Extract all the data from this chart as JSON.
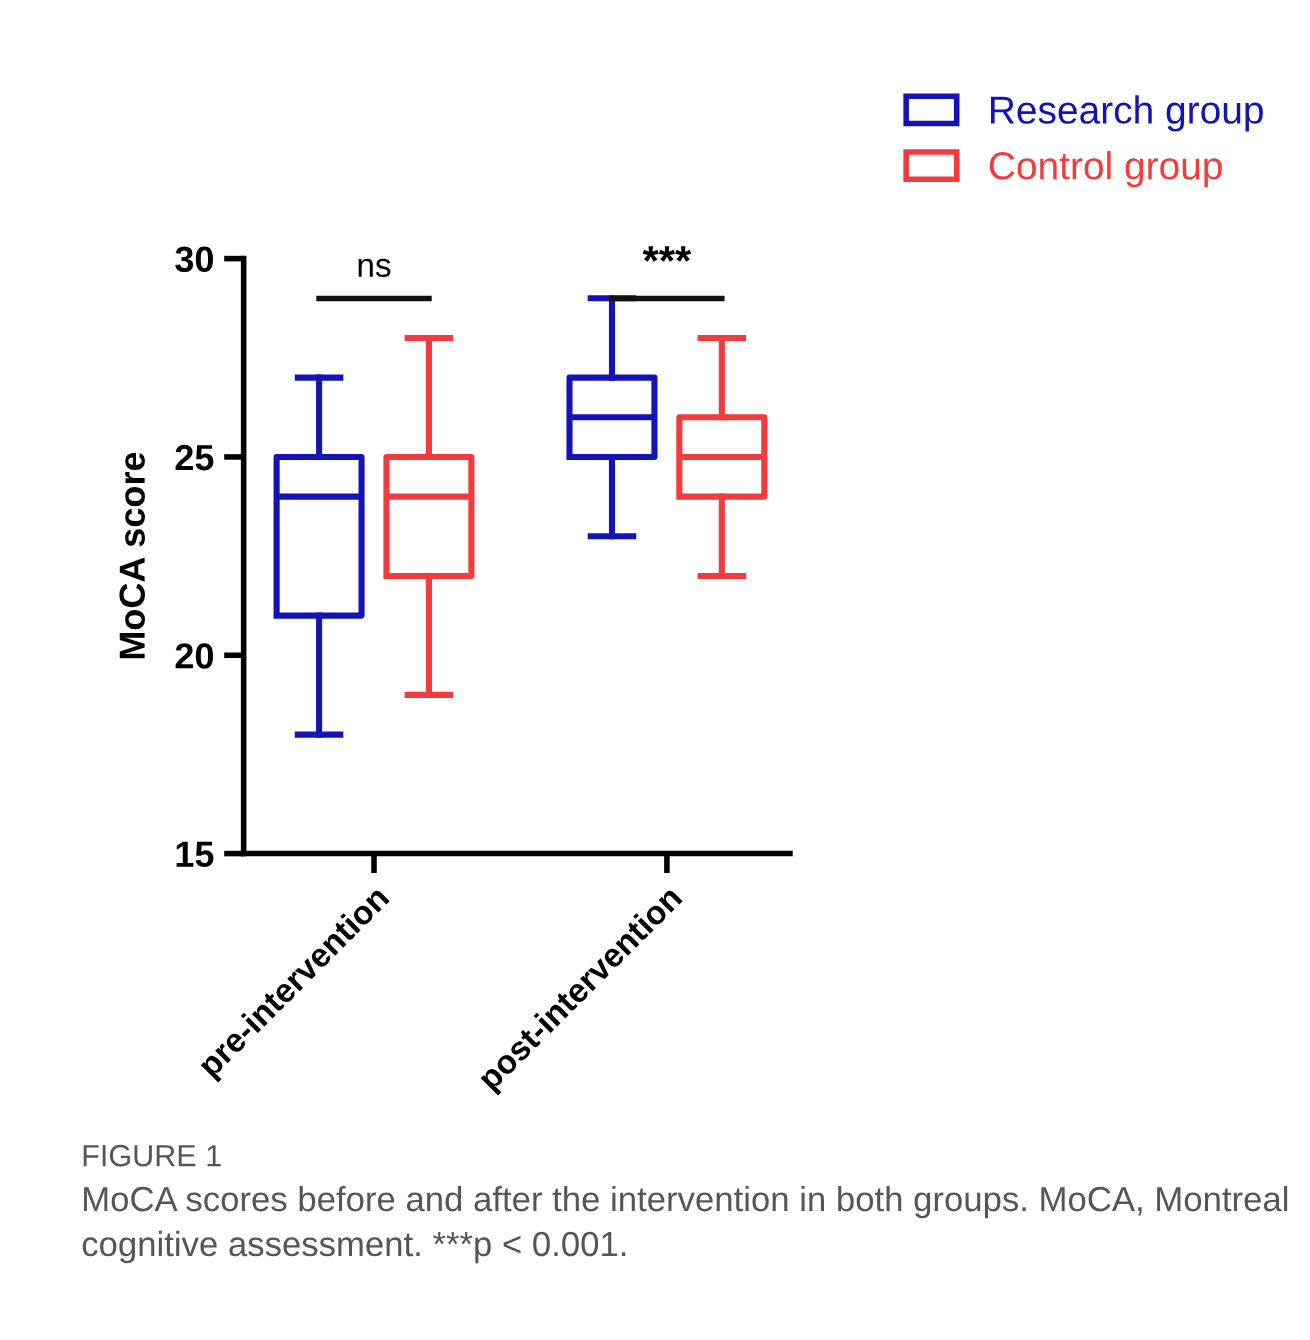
{
  "chart_data": {
    "type": "box",
    "ylabel": "MoCA score",
    "categories": [
      "pre-intervention",
      "post-intervention"
    ],
    "series": [
      {
        "name": "Research group",
        "color": "#1414b4",
        "boxes": [
          {
            "low": 18,
            "q1": 21,
            "median": 24,
            "q3": 25,
            "high": 27
          },
          {
            "low": 23,
            "q1": 25,
            "median": 26,
            "q3": 27,
            "high": 29
          }
        ]
      },
      {
        "name": "Control group",
        "color": "#f03c3c",
        "boxes": [
          {
            "low": 19,
            "q1": 22,
            "median": 24,
            "q3": 25,
            "high": 28
          },
          {
            "low": 22,
            "q1": 24,
            "median": 25,
            "q3": 26,
            "high": 28
          }
        ]
      }
    ],
    "ylim": [
      15,
      30
    ],
    "yticks": [
      15,
      20,
      25,
      30
    ],
    "grid": false,
    "legend": "top right",
    "annotations": [
      "ns",
      "***",
      "FIGURE 1",
      "MoCA scores before and after the intervention in both groups. MoCA, Montreal cognitive assessment. ***p < 0.001."
    ]
  }
}
